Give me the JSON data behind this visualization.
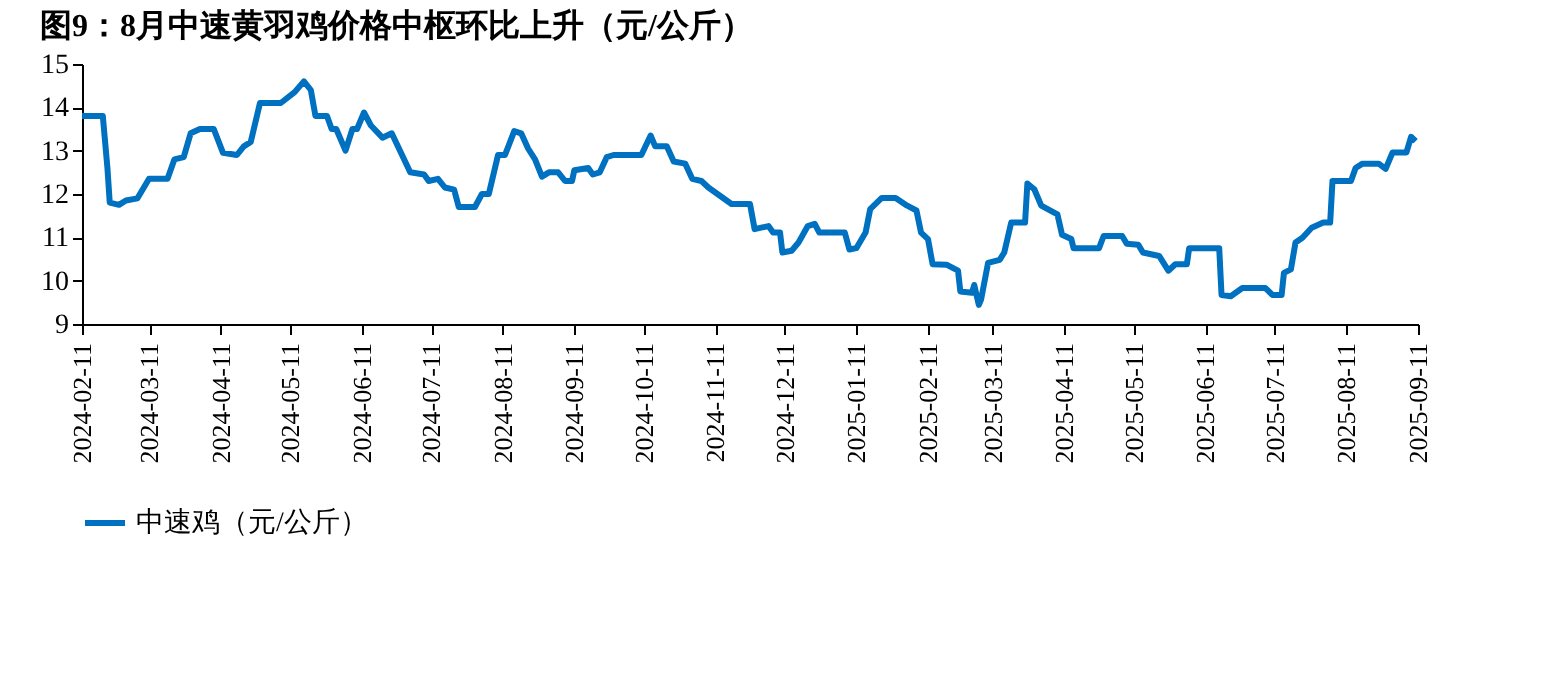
{
  "chart_data": {
    "type": "line",
    "title": "图9：8月中速黄羽鸡价格中枢环比上升（元/公斤）",
    "x": [
      "2024-02-11",
      "2024-02-20",
      "2024-02-22",
      "2024-02-23",
      "2024-02-27",
      "2024-03-01",
      "2024-03-06",
      "2024-03-11",
      "2024-03-19",
      "2024-03-22",
      "2024-03-26",
      "2024-03-29",
      "2024-04-02",
      "2024-04-08",
      "2024-04-12",
      "2024-04-18",
      "2024-04-21",
      "2024-04-24",
      "2024-04-28",
      "2024-05-07",
      "2024-05-13",
      "2024-05-17",
      "2024-05-20",
      "2024-05-22",
      "2024-05-27",
      "2024-05-29",
      "2024-05-31",
      "2024-06-04",
      "2024-06-07",
      "2024-06-09",
      "2024-06-12",
      "2024-06-15",
      "2024-06-20",
      "2024-06-24",
      "2024-06-28",
      "2024-07-02",
      "2024-07-08",
      "2024-07-10",
      "2024-07-14",
      "2024-07-17",
      "2024-07-21",
      "2024-07-23",
      "2024-07-30",
      "2024-08-02",
      "2024-08-05",
      "2024-08-09",
      "2024-08-12",
      "2024-08-16",
      "2024-08-19",
      "2024-08-22",
      "2024-08-25",
      "2024-08-28",
      "2024-08-31",
      "2024-09-04",
      "2024-09-07",
      "2024-09-10",
      "2024-09-11",
      "2024-09-17",
      "2024-09-19",
      "2024-09-22",
      "2024-09-25",
      "2024-09-28",
      "2024-10-10",
      "2024-10-14",
      "2024-10-16",
      "2024-10-21",
      "2024-10-24",
      "2024-10-29",
      "2024-11-01",
      "2024-11-05",
      "2024-11-08",
      "2024-11-18",
      "2024-11-26",
      "2024-11-28",
      "2024-12-04",
      "2024-12-06",
      "2024-12-09",
      "2024-12-10",
      "2024-12-14",
      "2024-12-17",
      "2024-12-21",
      "2024-12-24",
      "2024-12-26",
      "2025-01-06",
      "2025-01-08",
      "2025-01-11",
      "2025-01-15",
      "2025-01-17",
      "2025-01-22",
      "2025-01-28",
      "2025-02-02",
      "2025-02-06",
      "2025-02-08",
      "2025-02-11",
      "2025-02-13",
      "2025-02-19",
      "2025-02-24",
      "2025-02-25",
      "2025-03-02",
      "2025-03-03",
      "2025-03-05",
      "2025-03-06",
      "2025-03-09",
      "2025-03-14",
      "2025-03-16",
      "2025-03-19",
      "2025-03-25",
      "2025-03-26",
      "2025-03-29",
      "2025-04-01",
      "2025-04-08",
      "2025-04-10",
      "2025-04-14",
      "2025-04-15",
      "2025-04-26",
      "2025-04-28",
      "2025-05-06",
      "2025-05-08",
      "2025-05-13",
      "2025-05-15",
      "2025-05-22",
      "2025-05-26",
      "2025-05-29",
      "2025-06-03",
      "2025-06-04",
      "2025-06-17",
      "2025-06-18",
      "2025-06-22",
      "2025-06-27",
      "2025-07-07",
      "2025-07-10",
      "2025-07-14",
      "2025-07-15",
      "2025-07-18",
      "2025-07-20",
      "2025-07-23",
      "2025-07-27",
      "2025-08-01",
      "2025-08-04",
      "2025-08-05",
      "2025-08-13",
      "2025-08-15",
      "2025-08-18",
      "2025-08-25",
      "2025-08-28",
      "2025-08-31",
      "2025-09-06",
      "2025-09-08",
      "2025-09-10"
    ],
    "series": [
      {
        "name": "中速鸡（元/公斤）",
        "color": "#0070c0",
        "values": [
          13.8,
          13.8,
          12.6,
          11.8,
          11.75,
          11.85,
          11.9,
          12.35,
          12.35,
          12.8,
          12.85,
          13.4,
          13.5,
          13.5,
          12.95,
          12.9,
          13.1,
          13.2,
          14.1,
          14.1,
          14.35,
          14.6,
          14.4,
          13.8,
          13.8,
          13.5,
          13.5,
          13.0,
          13.5,
          13.5,
          13.88,
          13.58,
          13.3,
          13.4,
          12.95,
          12.5,
          12.45,
          12.3,
          12.35,
          12.15,
          12.1,
          11.7,
          11.7,
          12.0,
          12.0,
          12.9,
          12.9,
          13.45,
          13.4,
          13.05,
          12.8,
          12.4,
          12.5,
          12.5,
          12.3,
          12.3,
          12.55,
          12.6,
          12.45,
          12.5,
          12.85,
          12.9,
          12.9,
          13.35,
          13.1,
          13.1,
          12.75,
          12.7,
          12.35,
          12.3,
          12.15,
          11.77,
          11.77,
          11.19,
          11.26,
          11.11,
          11.11,
          10.65,
          10.69,
          10.88,
          11.26,
          11.31,
          11.11,
          11.11,
          10.72,
          10.75,
          11.11,
          11.65,
          11.91,
          11.91,
          11.73,
          11.62,
          11.11,
          10.96,
          10.38,
          10.37,
          10.23,
          9.75,
          9.72,
          9.9,
          9.44,
          9.57,
          10.41,
          10.48,
          10.65,
          11.34,
          11.34,
          12.24,
          12.11,
          11.73,
          11.53,
          11.06,
          10.96,
          10.75,
          10.75,
          11.03,
          11.03,
          10.85,
          10.83,
          10.65,
          10.57,
          10.23,
          10.38,
          10.38,
          10.75,
          10.75,
          9.67,
          9.64,
          9.83,
          9.83,
          9.67,
          9.67,
          10.18,
          10.26,
          10.88,
          10.99,
          11.22,
          11.34,
          11.34,
          12.3,
          12.3,
          12.6,
          12.7,
          12.7,
          12.58,
          12.96,
          12.96,
          13.32,
          13.22
        ]
      }
    ],
    "xlim": [
      "2024-02-11",
      "2025-09-11"
    ],
    "xticks": [
      "2024-02-11",
      "2024-03-11",
      "2024-04-11",
      "2024-05-11",
      "2024-06-11",
      "2024-07-11",
      "2024-08-11",
      "2024-09-11",
      "2024-10-11",
      "2024-11-11",
      "2024-12-11",
      "2025-01-11",
      "2025-02-11",
      "2025-03-11",
      "2025-04-11",
      "2025-05-11",
      "2025-06-11",
      "2025-07-11",
      "2025-08-11",
      "2025-09-11"
    ],
    "ylim": [
      9,
      15
    ],
    "yticks": [
      9,
      10,
      11,
      12,
      13,
      14,
      15
    ],
    "legend": "bottom",
    "grid": false,
    "line_style": "solid"
  }
}
